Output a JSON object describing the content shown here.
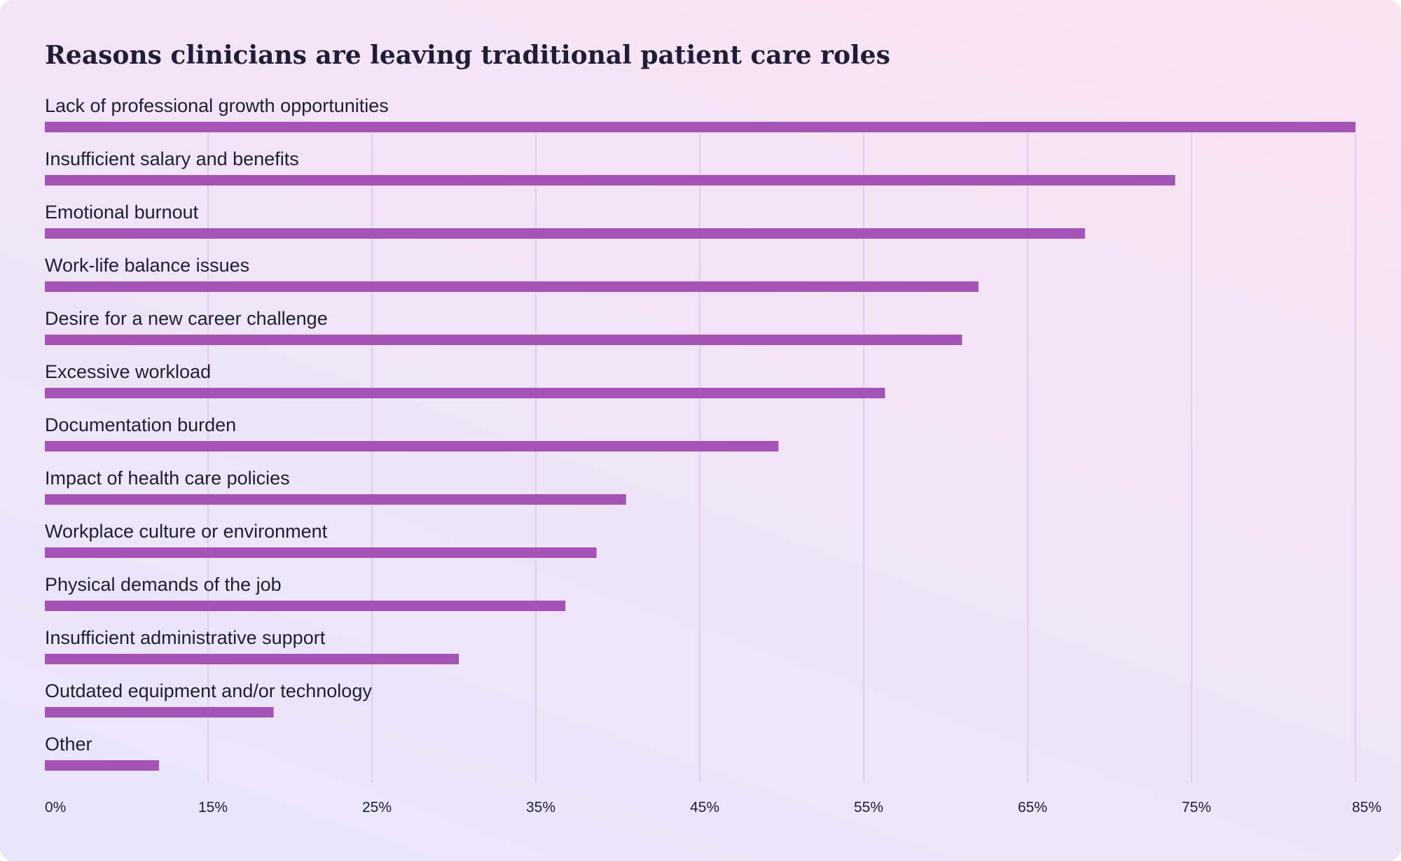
{
  "chart_data": {
    "type": "bar",
    "orientation": "horizontal",
    "title": "Reasons clinicians are leaving traditional patient care roles",
    "xlabel": "",
    "ylabel": "",
    "x_tick_labels": [
      "0%",
      "15%",
      "25%",
      "35%",
      "45%",
      "55%",
      "65%",
      "75%",
      "85%"
    ],
    "grid": "vertical",
    "legend": "none",
    "bar_color": "#a453b6",
    "categories": [
      "Lack of professional growth opportunities",
      "Insufficient salary and benefits",
      "Emotional burnout",
      "Work-life balance issues",
      "Desire for a new career challenge",
      "Excessive workload",
      "Documentation burden",
      "Impact of health care policies",
      "Workplace culture or environment",
      "Physical demands of the job",
      "Insufficient administrative support",
      "Outdated equipment and/or technology",
      "Other"
    ],
    "values": [
      85,
      74,
      68.5,
      62,
      61,
      56.3,
      49.8,
      40.5,
      38.7,
      36.8,
      30.3,
      19,
      10.5
    ]
  }
}
